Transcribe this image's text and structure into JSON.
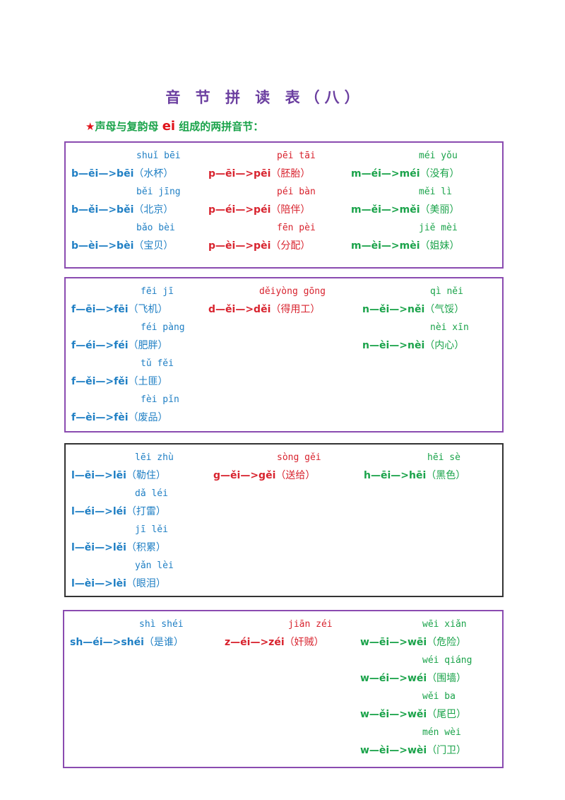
{
  "title": "音 节 拼 读 表（八）",
  "subtitle": {
    "star": "★",
    "before": "声母与复韵母 ",
    "final": "ei",
    "after": " 组成的两拼音节："
  },
  "colors": {
    "blue": "#1f7fc4",
    "red": "#d8232e",
    "green": "#1aa34a",
    "purple": "#6b3fa0"
  },
  "boxes": [
    {
      "columns": [
        {
          "color": "blue",
          "items": [
            {
              "pinyin": "shuǐ bēi",
              "spelling": "b—ēi—>bēi",
              "word": "（水杯）"
            },
            {
              "pinyin": "běi jīng",
              "spelling": "b—ěi—>běi",
              "word": "（北京）"
            },
            {
              "pinyin": "bǎo bèi",
              "spelling": "b—èi—>bèi",
              "word": "（宝贝）"
            }
          ]
        },
        {
          "color": "red",
          "items": [
            {
              "pinyin": "pēi tāi",
              "spelling": "p—ēi—>pēi",
              "word": "（胚胎）"
            },
            {
              "pinyin": "péi bàn",
              "spelling": "p—éi—>péi",
              "word": "（陪伴）"
            },
            {
              "pinyin": "fēn pèi",
              "spelling": "p—èi—>pèi",
              "word": "（分配）"
            }
          ]
        },
        {
          "color": "green",
          "items": [
            {
              "pinyin": "méi yǒu",
              "spelling": "m—éi—>méi",
              "word": "（没有）"
            },
            {
              "pinyin": "měi lì",
              "spelling": "m—ěi—>měi",
              "word": "（美丽）"
            },
            {
              "pinyin": "jiě mèi",
              "spelling": "m—èi—>mèi",
              "word": "（姐妹）"
            }
          ]
        }
      ]
    },
    {
      "columns": [
        {
          "color": "blue",
          "items": [
            {
              "pinyin": "fēi jī",
              "spelling": "f—ēi—>fēi",
              "word": "（飞机）"
            },
            {
              "pinyin": "féi pàng",
              "spelling": "f—éi—>féi",
              "word": "（肥胖）"
            },
            {
              "pinyin": "tǔ fěi",
              "spelling": "f—ěi—>fěi",
              "word": "（土匪）"
            },
            {
              "pinyin": "fèi pǐn",
              "spelling": "f—èi—>fèi",
              "word": "（废品）"
            }
          ]
        },
        {
          "color": "red",
          "items": [
            {
              "pinyin": "děiyòng gōng",
              "spelling": "d—ěi—>děi",
              "word": "（得用工）"
            }
          ]
        },
        {
          "color": "green",
          "items": [
            {
              "pinyin": "qì něi",
              "spelling": "n—ěi—>něi",
              "word": "（气馁）"
            },
            {
              "pinyin": "nèi xīn",
              "spelling": "n—èi—>nèi",
              "word": "（内心）"
            }
          ]
        }
      ]
    },
    {
      "columns": [
        {
          "color": "blue",
          "items": [
            {
              "pinyin": "lēi zhù",
              "spelling": "l—ēi—>lēi",
              "word": "（勒住）"
            },
            {
              "pinyin": "dǎ léi",
              "spelling": "l—éi—>léi",
              "word": "（打雷）"
            },
            {
              "pinyin": "jī lěi",
              "spelling": "l—ěi—>lěi",
              "word": "（积累）"
            },
            {
              "pinyin": "yǎn lèi",
              "spelling": "l—èi—>lèi",
              "word": "（眼泪）"
            }
          ]
        },
        {
          "color": "red",
          "items": [
            {
              "pinyin": "sòng gěi",
              "spelling": "g—ěi—>gěi",
              "word": "（送给）"
            }
          ]
        },
        {
          "color": "green",
          "items": [
            {
              "pinyin": "hēi sè",
              "spelling": "h—ēi—>hēi",
              "word": "（黑色）"
            }
          ]
        }
      ]
    },
    {
      "columns": [
        {
          "color": "blue",
          "items": [
            {
              "pinyin": "shì shéi",
              "spelling": "sh—éi—>shéi",
              "word": "（是谁）"
            }
          ]
        },
        {
          "color": "red",
          "items": [
            {
              "pinyin": "jiān zéi",
              "spelling": "z—éi—>zéi",
              "word": "（奸贼）"
            }
          ]
        },
        {
          "color": "green",
          "items": [
            {
              "pinyin": "wēi xiǎn",
              "spelling": "w—ēi—>wēi",
              "word": "（危险）"
            },
            {
              "pinyin": "wéi qiáng",
              "spelling": "w—éi—>wéi",
              "word": "（围墙）"
            },
            {
              "pinyin": "wěi ba",
              "spelling": "w—ěi—>wěi",
              "word": "（尾巴）"
            },
            {
              "pinyin": "mén wèi",
              "spelling": "w—èi—>wèi",
              "word": "（门卫）"
            }
          ]
        }
      ]
    }
  ]
}
